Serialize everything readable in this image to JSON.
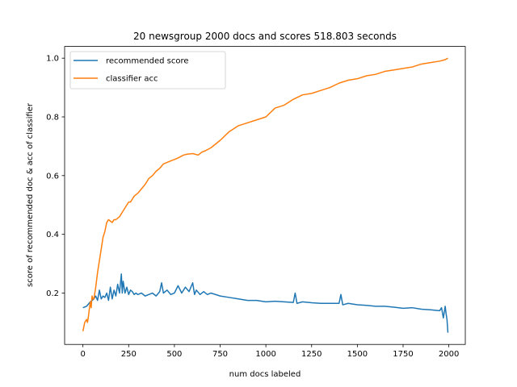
{
  "chart_data": {
    "type": "line",
    "title": "20 newsgroup 2000 docs and scores 518.803 seconds",
    "xlabel": "num docs labeled",
    "ylabel": "score of recommended doc & acc of classifier",
    "xlim": [
      -100,
      2090
    ],
    "ylim": [
      0.025,
      1.04
    ],
    "xticks": [
      0,
      250,
      500,
      750,
      1000,
      1250,
      1500,
      1750,
      2000
    ],
    "xtick_labels": [
      "0",
      "250",
      "500",
      "750",
      "1000",
      "1250",
      "1500",
      "1750",
      "2000"
    ],
    "yticks": [
      0.2,
      0.4,
      0.6,
      0.8,
      1.0
    ],
    "ytick_labels": [
      "0.2",
      "0.4",
      "0.6",
      "0.8",
      "1.0"
    ],
    "grid": false,
    "legend_position": "upper-left",
    "series": [
      {
        "name": "recommended score",
        "color": "#1f77b4",
        "x": [
          0,
          20,
          40,
          60,
          70,
          80,
          90,
          100,
          110,
          120,
          130,
          140,
          150,
          160,
          170,
          180,
          190,
          200,
          210,
          215,
          220,
          230,
          240,
          250,
          260,
          270,
          280,
          290,
          300,
          320,
          340,
          360,
          380,
          400,
          420,
          430,
          440,
          460,
          480,
          500,
          520,
          540,
          560,
          580,
          600,
          610,
          620,
          640,
          660,
          680,
          700,
          750,
          800,
          850,
          900,
          950,
          1000,
          1050,
          1100,
          1150,
          1160,
          1170,
          1200,
          1250,
          1300,
          1350,
          1400,
          1410,
          1420,
          1450,
          1500,
          1550,
          1600,
          1650,
          1700,
          1750,
          1800,
          1850,
          1900,
          1950,
          1960,
          1970,
          1980,
          1985,
          1990,
          1995
        ],
        "values": [
          0.15,
          0.155,
          0.17,
          0.18,
          0.19,
          0.175,
          0.21,
          0.18,
          0.19,
          0.185,
          0.2,
          0.175,
          0.22,
          0.18,
          0.21,
          0.19,
          0.23,
          0.2,
          0.265,
          0.2,
          0.24,
          0.2,
          0.22,
          0.195,
          0.21,
          0.205,
          0.195,
          0.2,
          0.195,
          0.2,
          0.19,
          0.195,
          0.2,
          0.19,
          0.205,
          0.235,
          0.2,
          0.21,
          0.195,
          0.2,
          0.225,
          0.2,
          0.22,
          0.205,
          0.235,
          0.195,
          0.21,
          0.195,
          0.205,
          0.195,
          0.2,
          0.19,
          0.185,
          0.18,
          0.175,
          0.175,
          0.17,
          0.172,
          0.17,
          0.168,
          0.2,
          0.165,
          0.17,
          0.167,
          0.165,
          0.165,
          0.165,
          0.195,
          0.16,
          0.165,
          0.16,
          0.158,
          0.155,
          0.155,
          0.152,
          0.148,
          0.15,
          0.145,
          0.143,
          0.14,
          0.15,
          0.115,
          0.155,
          0.13,
          0.11,
          0.065
        ]
      },
      {
        "name": "classifier acc",
        "color": "#ff7f0e",
        "x": [
          0,
          10,
          20,
          25,
          30,
          40,
          45,
          50,
          55,
          60,
          70,
          80,
          90,
          100,
          110,
          120,
          130,
          140,
          150,
          160,
          170,
          180,
          200,
          220,
          240,
          250,
          260,
          280,
          300,
          320,
          340,
          360,
          380,
          400,
          420,
          440,
          460,
          480,
          500,
          520,
          550,
          570,
          600,
          630,
          650,
          670,
          700,
          750,
          800,
          850,
          900,
          950,
          1000,
          1050,
          1100,
          1150,
          1200,
          1250,
          1300,
          1350,
          1400,
          1450,
          1500,
          1550,
          1600,
          1650,
          1700,
          1750,
          1800,
          1850,
          1900,
          1950,
          1980,
          1995
        ],
        "values": [
          0.07,
          0.1,
          0.11,
          0.1,
          0.12,
          0.17,
          0.15,
          0.19,
          0.18,
          0.18,
          0.22,
          0.27,
          0.31,
          0.35,
          0.39,
          0.41,
          0.44,
          0.45,
          0.445,
          0.44,
          0.45,
          0.45,
          0.46,
          0.48,
          0.5,
          0.51,
          0.51,
          0.53,
          0.54,
          0.555,
          0.57,
          0.59,
          0.6,
          0.615,
          0.625,
          0.64,
          0.645,
          0.65,
          0.655,
          0.66,
          0.67,
          0.673,
          0.675,
          0.67,
          0.68,
          0.685,
          0.695,
          0.72,
          0.75,
          0.77,
          0.78,
          0.79,
          0.8,
          0.83,
          0.84,
          0.86,
          0.875,
          0.88,
          0.89,
          0.9,
          0.915,
          0.925,
          0.93,
          0.94,
          0.945,
          0.955,
          0.96,
          0.965,
          0.97,
          0.98,
          0.985,
          0.99,
          0.995,
          1.0
        ]
      }
    ]
  }
}
